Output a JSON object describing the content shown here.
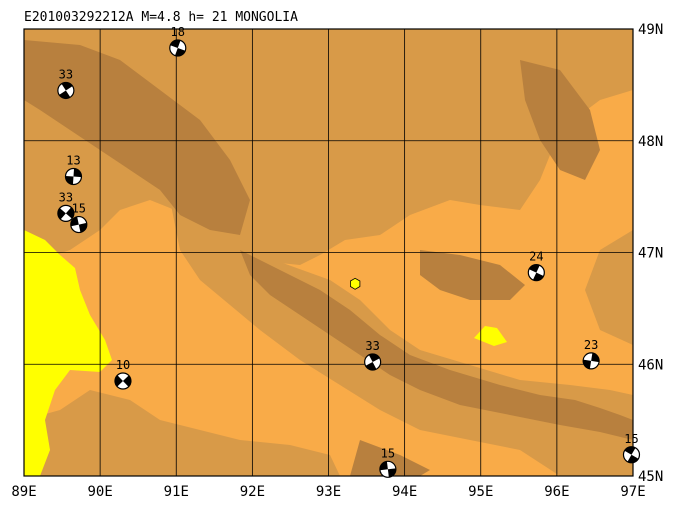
{
  "title": "E201003292212A  M=4.8  h= 21  MONGOLIA",
  "colors": {
    "low": "#f9ab48",
    "mid": "#d89a48",
    "high": "#b8803e",
    "lake": "#ffff00",
    "grid": "#000000"
  },
  "bounds": {
    "lon_min": 89,
    "lon_max": 97,
    "lat_min": 45,
    "lat_max": 49
  },
  "x_ticks": [
    {
      "value": 89,
      "label": "89E"
    },
    {
      "value": 90,
      "label": "90E"
    },
    {
      "value": 91,
      "label": "91E"
    },
    {
      "value": 92,
      "label": "92E"
    },
    {
      "value": 93,
      "label": "93E"
    },
    {
      "value": 94,
      "label": "94E"
    },
    {
      "value": 95,
      "label": "95E"
    },
    {
      "value": 96,
      "label": "96E"
    },
    {
      "value": 97,
      "label": "97E"
    }
  ],
  "y_ticks": [
    {
      "value": 49,
      "label": "49N"
    },
    {
      "value": 48,
      "label": "48N"
    },
    {
      "value": 47,
      "label": "47N"
    },
    {
      "value": 46,
      "label": "46N"
    },
    {
      "value": 45,
      "label": "45N"
    }
  ],
  "epicenter": {
    "lon": 93.35,
    "lat": 46.72,
    "symbol": "yellow-hexagon"
  },
  "events": [
    {
      "depth": "18",
      "lon": 91.02,
      "lat": 48.83
    },
    {
      "depth": "33",
      "lon": 89.55,
      "lat": 48.45
    },
    {
      "depth": "13",
      "lon": 89.65,
      "lat": 47.68
    },
    {
      "depth": "33",
      "lon": 89.55,
      "lat": 47.35
    },
    {
      "depth": "15",
      "lon": 89.72,
      "lat": 47.25
    },
    {
      "depth": "24",
      "lon": 95.73,
      "lat": 46.82
    },
    {
      "depth": "33",
      "lon": 93.58,
      "lat": 46.02
    },
    {
      "depth": "23",
      "lon": 96.45,
      "lat": 46.03
    },
    {
      "depth": "10",
      "lon": 90.3,
      "lat": 45.85
    },
    {
      "depth": "15",
      "lon": 93.78,
      "lat": 45.06
    },
    {
      "depth": "15",
      "lon": 96.98,
      "lat": 45.19
    }
  ]
}
